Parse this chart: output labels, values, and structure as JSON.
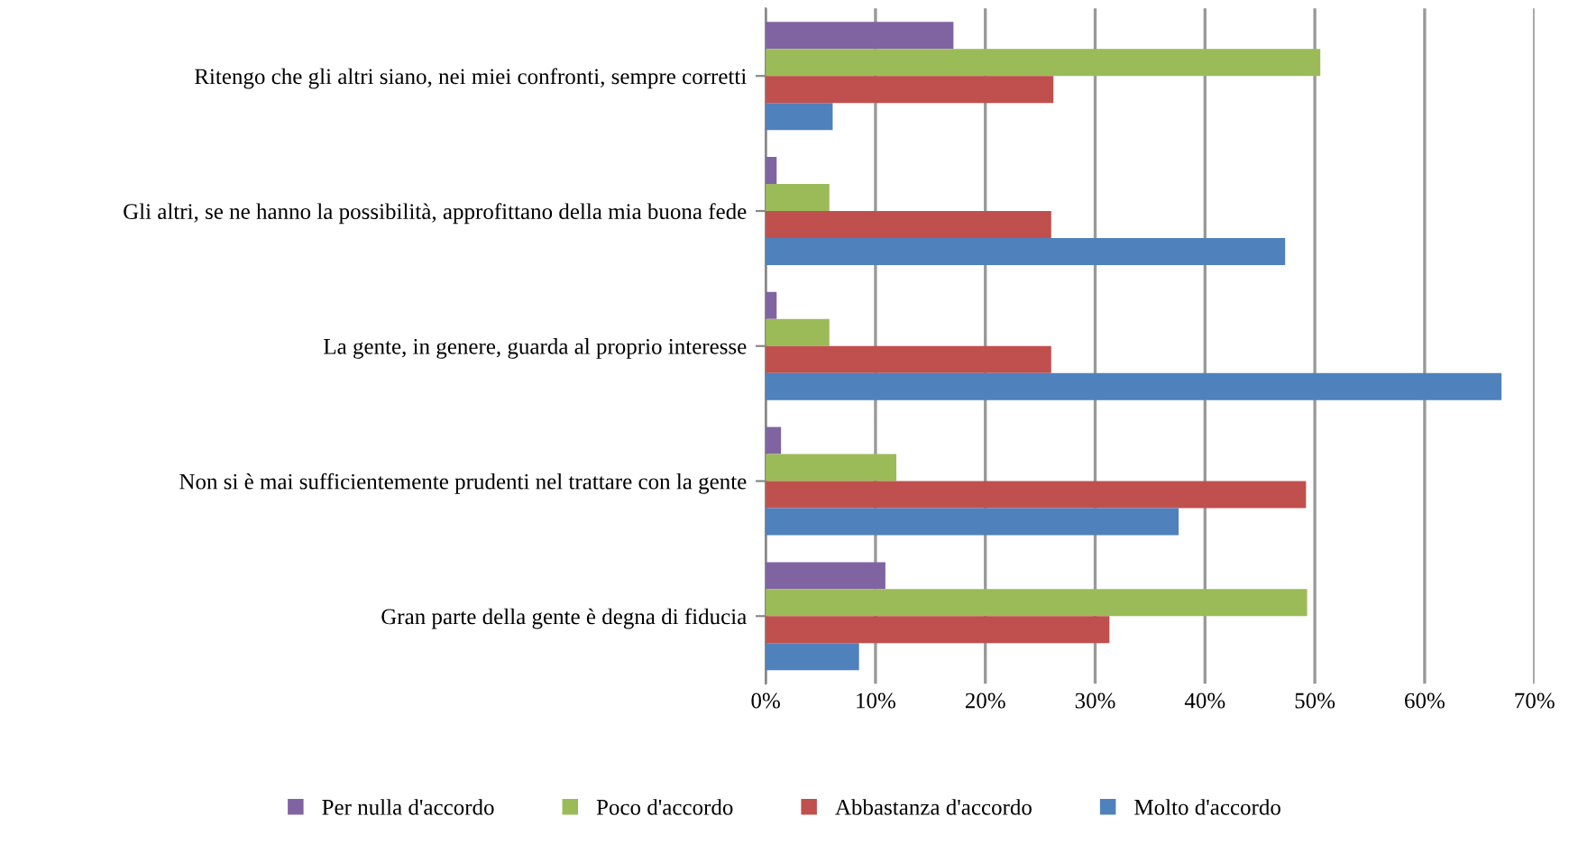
{
  "chart_data": {
    "type": "bar",
    "orientation": "horizontal",
    "categories": [
      "Ritengo che gli altri siano, nei miei confronti, sempre corretti",
      "Gli altri, se ne hanno la possibilità, approfittano della mia buona fede",
      "La gente, in genere, guarda al proprio interesse",
      "Non si è mai sufficientemente prudenti nel trattare con la gente",
      "Gran parte della gente è degna di fiducia"
    ],
    "series": [
      {
        "name": "Per nulla d'accordo",
        "color": "#8064a2",
        "values": [
          17.1,
          1.0,
          1.0,
          1.4,
          10.9
        ]
      },
      {
        "name": "Poco d'accordo",
        "color": "#9bbb59",
        "values": [
          50.5,
          5.8,
          5.8,
          11.9,
          49.3
        ]
      },
      {
        "name": "Abbastanza d'accordo",
        "color": "#c0504d",
        "values": [
          26.2,
          26.0,
          26.0,
          49.2,
          31.3
        ]
      },
      {
        "name": "Molto d'accordo",
        "color": "#4f81bd",
        "values": [
          6.1,
          47.3,
          67.0,
          37.6,
          8.5
        ]
      }
    ],
    "xlim": [
      0,
      70
    ],
    "xticks": [
      {
        "value": 0,
        "label": "0%"
      },
      {
        "value": 10,
        "label": "10%"
      },
      {
        "value": 20,
        "label": "20%"
      },
      {
        "value": 30,
        "label": "30%"
      },
      {
        "value": 40,
        "label": "40%"
      },
      {
        "value": 50,
        "label": "50%"
      },
      {
        "value": 60,
        "label": "60%"
      },
      {
        "value": 70,
        "label": "70%"
      }
    ],
    "grid": "x",
    "legend": "bottom"
  }
}
